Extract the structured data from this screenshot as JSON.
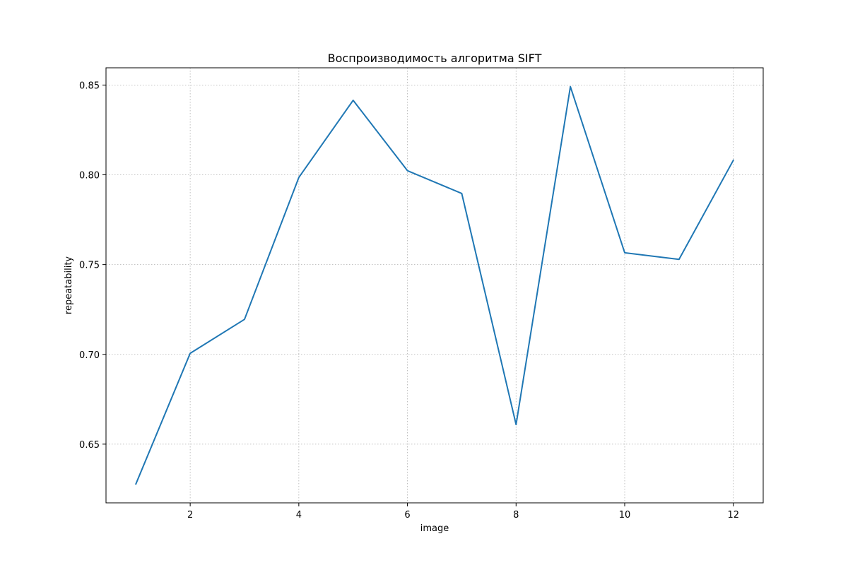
{
  "chart_data": {
    "type": "line",
    "title": "Воспроизводимость алгоритма SIFT",
    "xlabel": "image",
    "ylabel": "repeatability",
    "x": [
      1,
      2,
      3,
      4,
      5,
      6,
      7,
      8,
      9,
      10,
      11,
      12
    ],
    "series": [
      {
        "values": [
          0.6278,
          0.7006,
          0.7195,
          0.7985,
          0.8415,
          0.8023,
          0.7896,
          0.6609,
          0.8491,
          0.7566,
          0.7529,
          0.8081
        ],
        "color": "#1f77b4"
      }
    ],
    "xlim": [
      0.45,
      12.55
    ],
    "ylim": [
      0.6173,
      0.8596
    ],
    "xticks": [
      2,
      4,
      6,
      8,
      10,
      12
    ],
    "xtick_labels": [
      "2",
      "4",
      "6",
      "8",
      "10",
      "12"
    ],
    "yticks": [
      0.65,
      0.7,
      0.75,
      0.8,
      0.85
    ],
    "ytick_labels": [
      "0.65",
      "0.70",
      "0.75",
      "0.80",
      "0.85"
    ],
    "grid": true,
    "grid_style": "dotted",
    "legend": false
  }
}
